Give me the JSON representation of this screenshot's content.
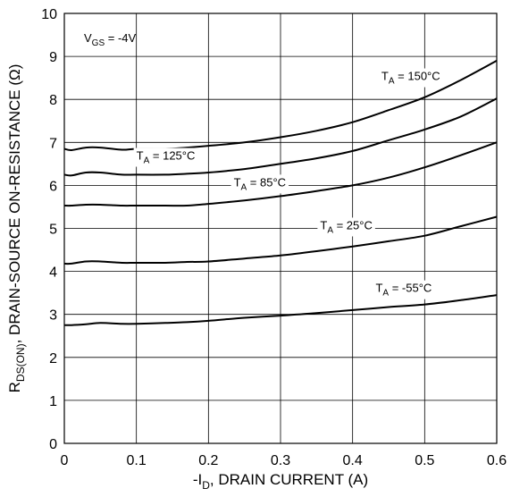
{
  "chart_data": {
    "type": "line",
    "title": "",
    "xlabel": {
      "prefix": "-I",
      "sub": "D",
      "suffix": ", DRAIN CURRENT (A)"
    },
    "ylabel": {
      "prefix": "R",
      "sub": "DS(ON)",
      "suffix": ",  DRAIN-SOURCE ON-RESISTANCE (Ω)"
    },
    "xlim": [
      0,
      0.6
    ],
    "ylim": [
      0,
      10
    ],
    "xticks": [
      0,
      0.1,
      0.2,
      0.3,
      0.4,
      0.5,
      0.6
    ],
    "xtick_labels": [
      "0",
      "0.1",
      "0.2",
      "0.3",
      "0.4",
      "0.5",
      "0.6"
    ],
    "yticks": [
      0,
      1,
      2,
      3,
      4,
      5,
      6,
      7,
      8,
      9,
      10
    ],
    "ytick_labels": [
      "0",
      "1",
      "2",
      "3",
      "4",
      "5",
      "6",
      "7",
      "8",
      "9",
      "10"
    ],
    "grid": true,
    "condition": {
      "prefix": "V",
      "sub": "GS",
      "suffix": " = -4V"
    },
    "series": [
      {
        "name": "T_A = 150°C",
        "label": {
          "prefix": "T",
          "sub": "A",
          "suffix": " = 150°C"
        },
        "label_at": [
          0.44,
          8.45
        ],
        "x": [
          0,
          0.01,
          0.03,
          0.05,
          0.08,
          0.1,
          0.14,
          0.17,
          0.2,
          0.25,
          0.3,
          0.35,
          0.4,
          0.45,
          0.5,
          0.55,
          0.6
        ],
        "y": [
          6.85,
          6.82,
          6.88,
          6.88,
          6.83,
          6.85,
          6.85,
          6.88,
          6.92,
          7.0,
          7.12,
          7.27,
          7.47,
          7.75,
          8.05,
          8.45,
          8.9
        ]
      },
      {
        "name": "T_A = 125°C",
        "label": {
          "prefix": "T",
          "sub": "A",
          "suffix": " = 125°C"
        },
        "label_at": [
          0.1,
          6.6
        ],
        "x": [
          0,
          0.01,
          0.03,
          0.05,
          0.08,
          0.1,
          0.14,
          0.17,
          0.2,
          0.25,
          0.3,
          0.35,
          0.4,
          0.45,
          0.5,
          0.55,
          0.6
        ],
        "y": [
          6.25,
          6.23,
          6.3,
          6.3,
          6.25,
          6.25,
          6.25,
          6.27,
          6.3,
          6.38,
          6.5,
          6.63,
          6.8,
          7.05,
          7.3,
          7.6,
          8.02
        ]
      },
      {
        "name": "T_A = 85°C",
        "label": {
          "prefix": "T",
          "sub": "A",
          "suffix": " = 85°C"
        },
        "label_at": [
          0.235,
          5.98
        ],
        "x": [
          0,
          0.01,
          0.03,
          0.05,
          0.08,
          0.1,
          0.14,
          0.17,
          0.2,
          0.25,
          0.3,
          0.35,
          0.4,
          0.45,
          0.5,
          0.55,
          0.6
        ],
        "y": [
          5.53,
          5.53,
          5.55,
          5.55,
          5.53,
          5.53,
          5.53,
          5.53,
          5.57,
          5.65,
          5.75,
          5.87,
          6.0,
          6.18,
          6.42,
          6.7,
          7.0
        ]
      },
      {
        "name": "T_A = 25°C",
        "label": {
          "prefix": "T",
          "sub": "A",
          "suffix": " = 25°C"
        },
        "label_at": [
          0.355,
          4.98
        ],
        "x": [
          0,
          0.01,
          0.03,
          0.05,
          0.08,
          0.1,
          0.14,
          0.17,
          0.2,
          0.25,
          0.3,
          0.35,
          0.4,
          0.45,
          0.5,
          0.55,
          0.6
        ],
        "y": [
          4.18,
          4.18,
          4.23,
          4.23,
          4.2,
          4.2,
          4.2,
          4.22,
          4.23,
          4.3,
          4.37,
          4.47,
          4.58,
          4.7,
          4.83,
          5.05,
          5.27
        ]
      },
      {
        "name": "T_A = -55°C",
        "label": {
          "prefix": "T",
          "sub": "A",
          "suffix": " = -55°C"
        },
        "label_at": [
          0.432,
          3.52
        ],
        "x": [
          0,
          0.01,
          0.03,
          0.05,
          0.08,
          0.1,
          0.14,
          0.17,
          0.2,
          0.25,
          0.3,
          0.35,
          0.4,
          0.45,
          0.5,
          0.55,
          0.6
        ],
        "y": [
          2.75,
          2.75,
          2.77,
          2.8,
          2.78,
          2.78,
          2.8,
          2.82,
          2.85,
          2.92,
          2.97,
          3.03,
          3.1,
          3.17,
          3.23,
          3.33,
          3.45
        ]
      }
    ]
  }
}
